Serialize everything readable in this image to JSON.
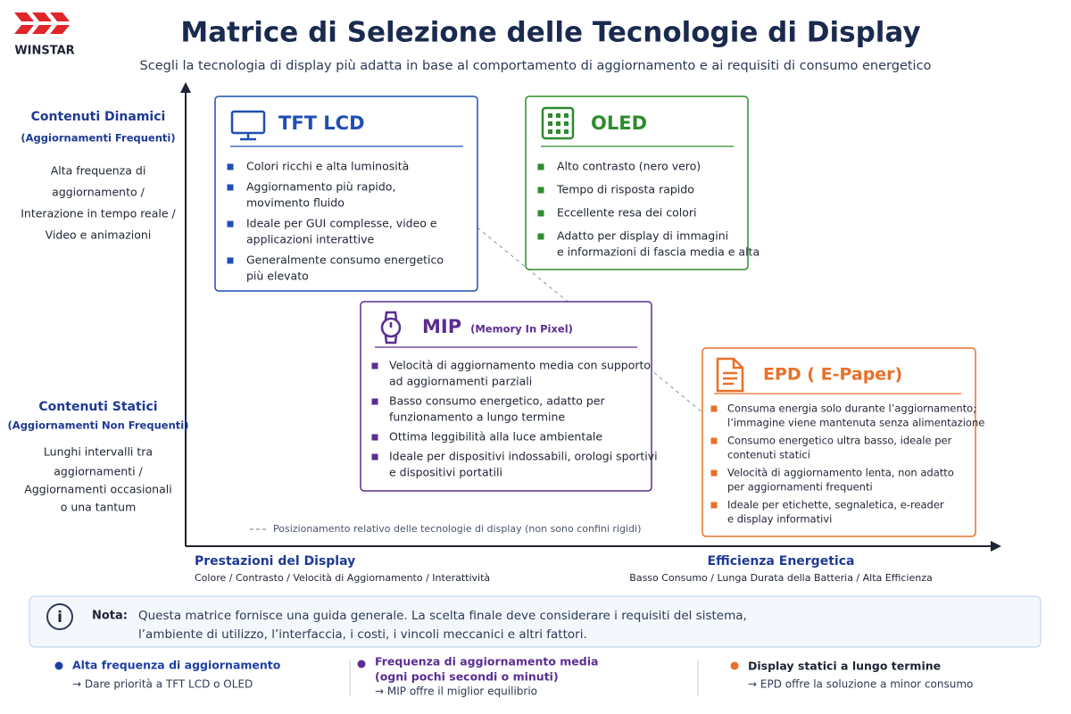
{
  "header": {
    "logo": "WINSTAR",
    "title": "Matrice di Selezione delle Tecnologie di Display",
    "subtitle": "Scegli la tecnologia di display più adatta in base al comportamento di aggiornamento e ai requisiti di consumo energetico"
  },
  "y_axis": {
    "top": {
      "title": "Contenuti Dinamici",
      "subtitle": "(Aggiornamenti Frequenti)",
      "lines": [
        "Alta frequenza di",
        "aggiornamento /",
        "Interazione in tempo reale /",
        "Video e animazioni"
      ]
    },
    "bottom": {
      "title": "Contenuti Statici",
      "subtitle": "(Aggiornamenti Non Frequenti)",
      "lines": [
        "Lunghi intervalli tra",
        "aggiornamenti /",
        "Aggiornamenti occasionali",
        "o una tantum"
      ]
    }
  },
  "x_axis": {
    "left": {
      "title": "Prestazioni del Display",
      "subtitle": "Colore / Contrasto / Velocità di Aggiornamento / Interattività"
    },
    "right": {
      "title": "Efficienza Energetica",
      "subtitle": "Basso Consumo / Lunga Durata della Batteria / Alta Efficienza"
    }
  },
  "legend_note": "Posizionamento relativo delle tecnologie di display (non sono confini rigidi)",
  "cards": [
    {
      "title": "TFT LCD",
      "color": "#1f4fb5",
      "items": [
        [
          "Colori ricchi e alta luminosità"
        ],
        [
          "Aggiornamento più rapido,",
          "movimento fluido"
        ],
        [
          "Ideale per GUI complesse, video e",
          "applicazioni interattive"
        ],
        [
          "Generalmente consumo energetico",
          "più elevato"
        ]
      ]
    },
    {
      "title": "OLED",
      "color": "#2e8b2e",
      "items": [
        [
          "Alto contrasto (nero vero)"
        ],
        [
          "Tempo di risposta rapido"
        ],
        [
          "Eccellente resa dei colori"
        ],
        [
          "Adatto per display di immagini",
          "e informazioni di fascia media e alta"
        ]
      ]
    },
    {
      "title": "MIP",
      "subtitle": "(Memory In Pixel)",
      "color": "#5b2d91",
      "items": [
        [
          "Velocità di aggiornamento media con supporto",
          "ad aggiornamenti parziali"
        ],
        [
          "Basso consumo energetico, adatto per",
          "funzionamento a lungo termine"
        ],
        [
          "Ottima leggibilità alla luce ambientale"
        ],
        [
          "Ideale per dispositivi indossabili, orologi sportivi",
          "e dispositivi portatili"
        ]
      ]
    },
    {
      "title": "EPD ( E-Paper)",
      "color": "#e8702a",
      "items": [
        [
          "Consuma energia solo durante l’aggiornamento;",
          "l’immagine viene mantenuta senza alimentazione"
        ],
        [
          "Consumo energetico ultra basso, ideale per",
          "contenuti statici"
        ],
        [
          "Velocità di aggiornamento lenta, non adatto",
          "per aggiornamenti frequenti"
        ],
        [
          "Ideale per etichette, segnaletica, e-reader",
          "e display informativi"
        ]
      ]
    }
  ],
  "note": {
    "label": "Nota:",
    "lines": [
      "Questa matrice fornisce una guida generale. La scelta finale deve considerare i requisiti del sistema,",
      "l’ambiente di utilizzo, l’interfaccia, i costi, i vincoli meccanici e altri fattori."
    ]
  },
  "footer": [
    {
      "title": [
        "Alta frequenza di aggiornamento"
      ],
      "text": "→ Dare priorità a TFT LCD o OLED",
      "color": "#1f3fa5"
    },
    {
      "title": [
        "Frequenza di aggiornamento media",
        "(ogni pochi secondi o minuti)"
      ],
      "text": "→ MIP offre il miglior equilibrio",
      "color": "#5b2d91"
    },
    {
      "title": [
        "Display statici a lungo termine"
      ],
      "text": "→ EPD offre la soluzione a minor consumo",
      "color": "#e8702a"
    }
  ]
}
